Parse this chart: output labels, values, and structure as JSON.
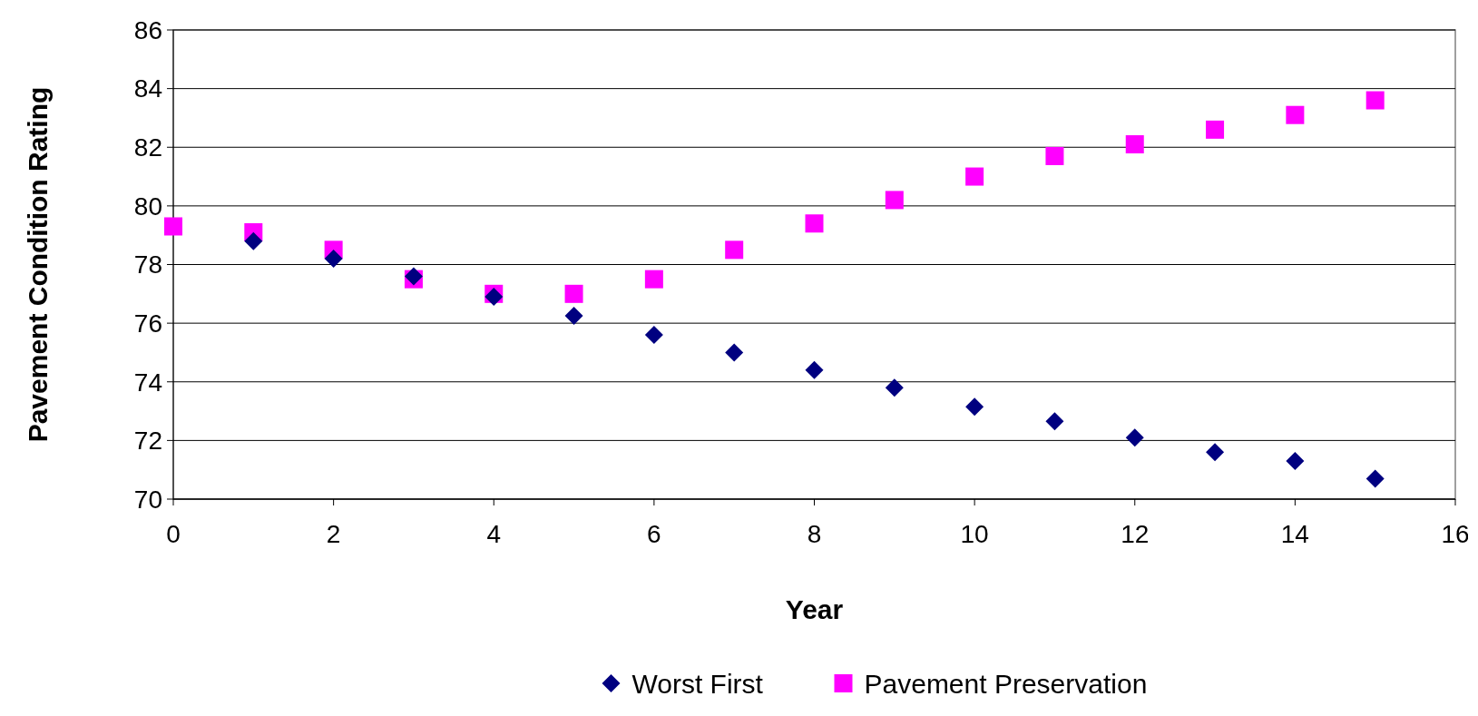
{
  "chart_data": {
    "type": "scatter",
    "xlabel": "Year",
    "ylabel": "Pavement Condition Rating",
    "x": [
      0,
      1,
      2,
      3,
      4,
      5,
      6,
      7,
      8,
      9,
      10,
      11,
      12,
      13,
      14,
      15
    ],
    "series": [
      {
        "name": "Worst First",
        "color": "#000080",
        "marker": "diamond",
        "values": [
          null,
          78.8,
          78.2,
          77.6,
          76.9,
          76.25,
          75.6,
          75.0,
          74.4,
          73.8,
          73.15,
          72.65,
          72.1,
          71.6,
          71.3,
          70.7
        ]
      },
      {
        "name": "Pavement Preservation",
        "color": "#ff00ff",
        "marker": "square",
        "values": [
          79.3,
          79.1,
          78.5,
          77.5,
          77.0,
          77.0,
          77.5,
          78.5,
          79.4,
          80.2,
          81.0,
          81.7,
          82.1,
          82.6,
          83.1,
          83.6
        ]
      }
    ],
    "xlim": [
      0,
      16
    ],
    "xticks": [
      0,
      2,
      4,
      6,
      8,
      10,
      12,
      14,
      16
    ],
    "ylim": [
      70,
      86
    ],
    "yticks": [
      70,
      72,
      74,
      76,
      78,
      80,
      82,
      84,
      86
    ],
    "grid": "y",
    "legend": "bottom"
  }
}
